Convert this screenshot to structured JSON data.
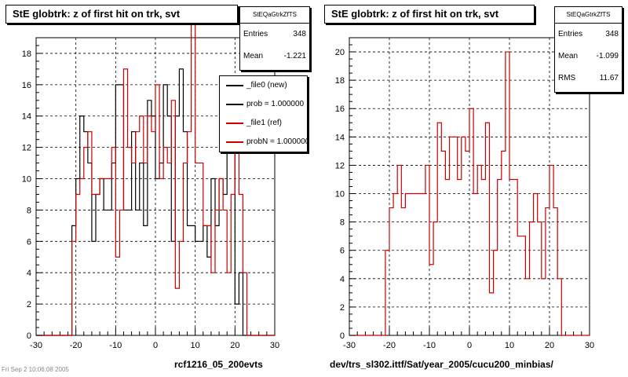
{
  "panels": [
    {
      "title": "StE globtrk: z of first hit on trk, svt",
      "stats": {
        "name": "StEQaGtrkZfTS",
        "rows": [
          {
            "label": "Entries",
            "value": "348"
          },
          {
            "label": "Mean",
            "value": "-1.221"
          }
        ]
      },
      "legend": [
        {
          "label": "_file0 (new)",
          "color": "#000000"
        },
        {
          "label": "prob = 1.000000",
          "color": "#000000"
        },
        {
          "label": "_file1 (ref)",
          "color": "#cc0000"
        },
        {
          "label": "probN = 1.000000",
          "color": "#cc0000"
        }
      ],
      "xlabel": "rcf1216_05_200evts"
    },
    {
      "title": "StE globtrk: z of first hit on trk, svt",
      "stats": {
        "name": "StEQaGtrkZfTS",
        "rows": [
          {
            "label": "Entries",
            "value": "348"
          },
          {
            "label": "Mean",
            "value": "-1.099"
          },
          {
            "label": "RMS",
            "value": "11.67"
          }
        ]
      },
      "xlabel": "dev/trs_sl302.ittf/Sat/year_2005/cucu200_minbias/"
    }
  ],
  "footer": "Fri Sep 2 10:06:08 2005",
  "chart_data": [
    {
      "type": "histogram",
      "title": "StE globtrk: z of first hit on trk, svt",
      "xlabel": "rcf1216_05_200evts",
      "xlim": [
        -30,
        30
      ],
      "ylim": [
        0,
        19
      ],
      "yticks": [
        0,
        2,
        4,
        6,
        8,
        10,
        12,
        14,
        16,
        18
      ],
      "xticks": [
        -30,
        -20,
        -10,
        0,
        10,
        20,
        30
      ],
      "bin_width": 1,
      "grid": true,
      "legend_position": "top-right",
      "series": [
        {
          "name": "_file0 (new)",
          "color": "#000000",
          "x_start": -30,
          "values": [
            0,
            0,
            0,
            0,
            0,
            0,
            0,
            0,
            0,
            7,
            10,
            14,
            13,
            11,
            6,
            9,
            10,
            8,
            8,
            11,
            16,
            16,
            8,
            8,
            13,
            8,
            11,
            7,
            15,
            14,
            10,
            11,
            16,
            14,
            6,
            14,
            17,
            13,
            7,
            7,
            6,
            6,
            7,
            5,
            10,
            7,
            10,
            9,
            14,
            12,
            2,
            4,
            0,
            0,
            0,
            0,
            0,
            0,
            0,
            0
          ]
        },
        {
          "name": "_file1 (ref)",
          "color": "#cc0000",
          "x_start": -30,
          "values": [
            0,
            0,
            0,
            0,
            0,
            0,
            0,
            0,
            0,
            6,
            9,
            10,
            12,
            13,
            9,
            9,
            10,
            10,
            10,
            12,
            5,
            8,
            17,
            12,
            11,
            13,
            14,
            11,
            14,
            13,
            16,
            10,
            12,
            11,
            15,
            3,
            6,
            11,
            13,
            20,
            11,
            11,
            7,
            7,
            4,
            8,
            10,
            8,
            4,
            9,
            12,
            9,
            4,
            0,
            0,
            0,
            0,
            0,
            0,
            0
          ]
        }
      ]
    },
    {
      "type": "histogram",
      "title": "StE globtrk: z of first hit on trk, svt",
      "xlabel": "dev/trs_sl302.ittf/Sat/year_2005/cucu200_minbias/",
      "xlim": [
        -30,
        30
      ],
      "ylim": [
        0,
        21
      ],
      "yticks": [
        0,
        2,
        4,
        6,
        8,
        10,
        12,
        14,
        16,
        18,
        20
      ],
      "xticks": [
        -30,
        -20,
        -10,
        0,
        10,
        20,
        30
      ],
      "bin_width": 1,
      "grid": true,
      "series": [
        {
          "name": "_file1 (ref)",
          "color": "#cc0000",
          "x_start": -30,
          "values": [
            0,
            0,
            0,
            0,
            0,
            0,
            0,
            0,
            0,
            6,
            9,
            10,
            12,
            9,
            10,
            10,
            10,
            10,
            10,
            12,
            5,
            8,
            15,
            13,
            11,
            14,
            14,
            11,
            14,
            13,
            16,
            10,
            12,
            11,
            15,
            3,
            6,
            11,
            13,
            20,
            11,
            11,
            7,
            7,
            4,
            8,
            10,
            8,
            4,
            9,
            12,
            9,
            4,
            0,
            0,
            0,
            0,
            0,
            0,
            0
          ]
        }
      ]
    }
  ]
}
